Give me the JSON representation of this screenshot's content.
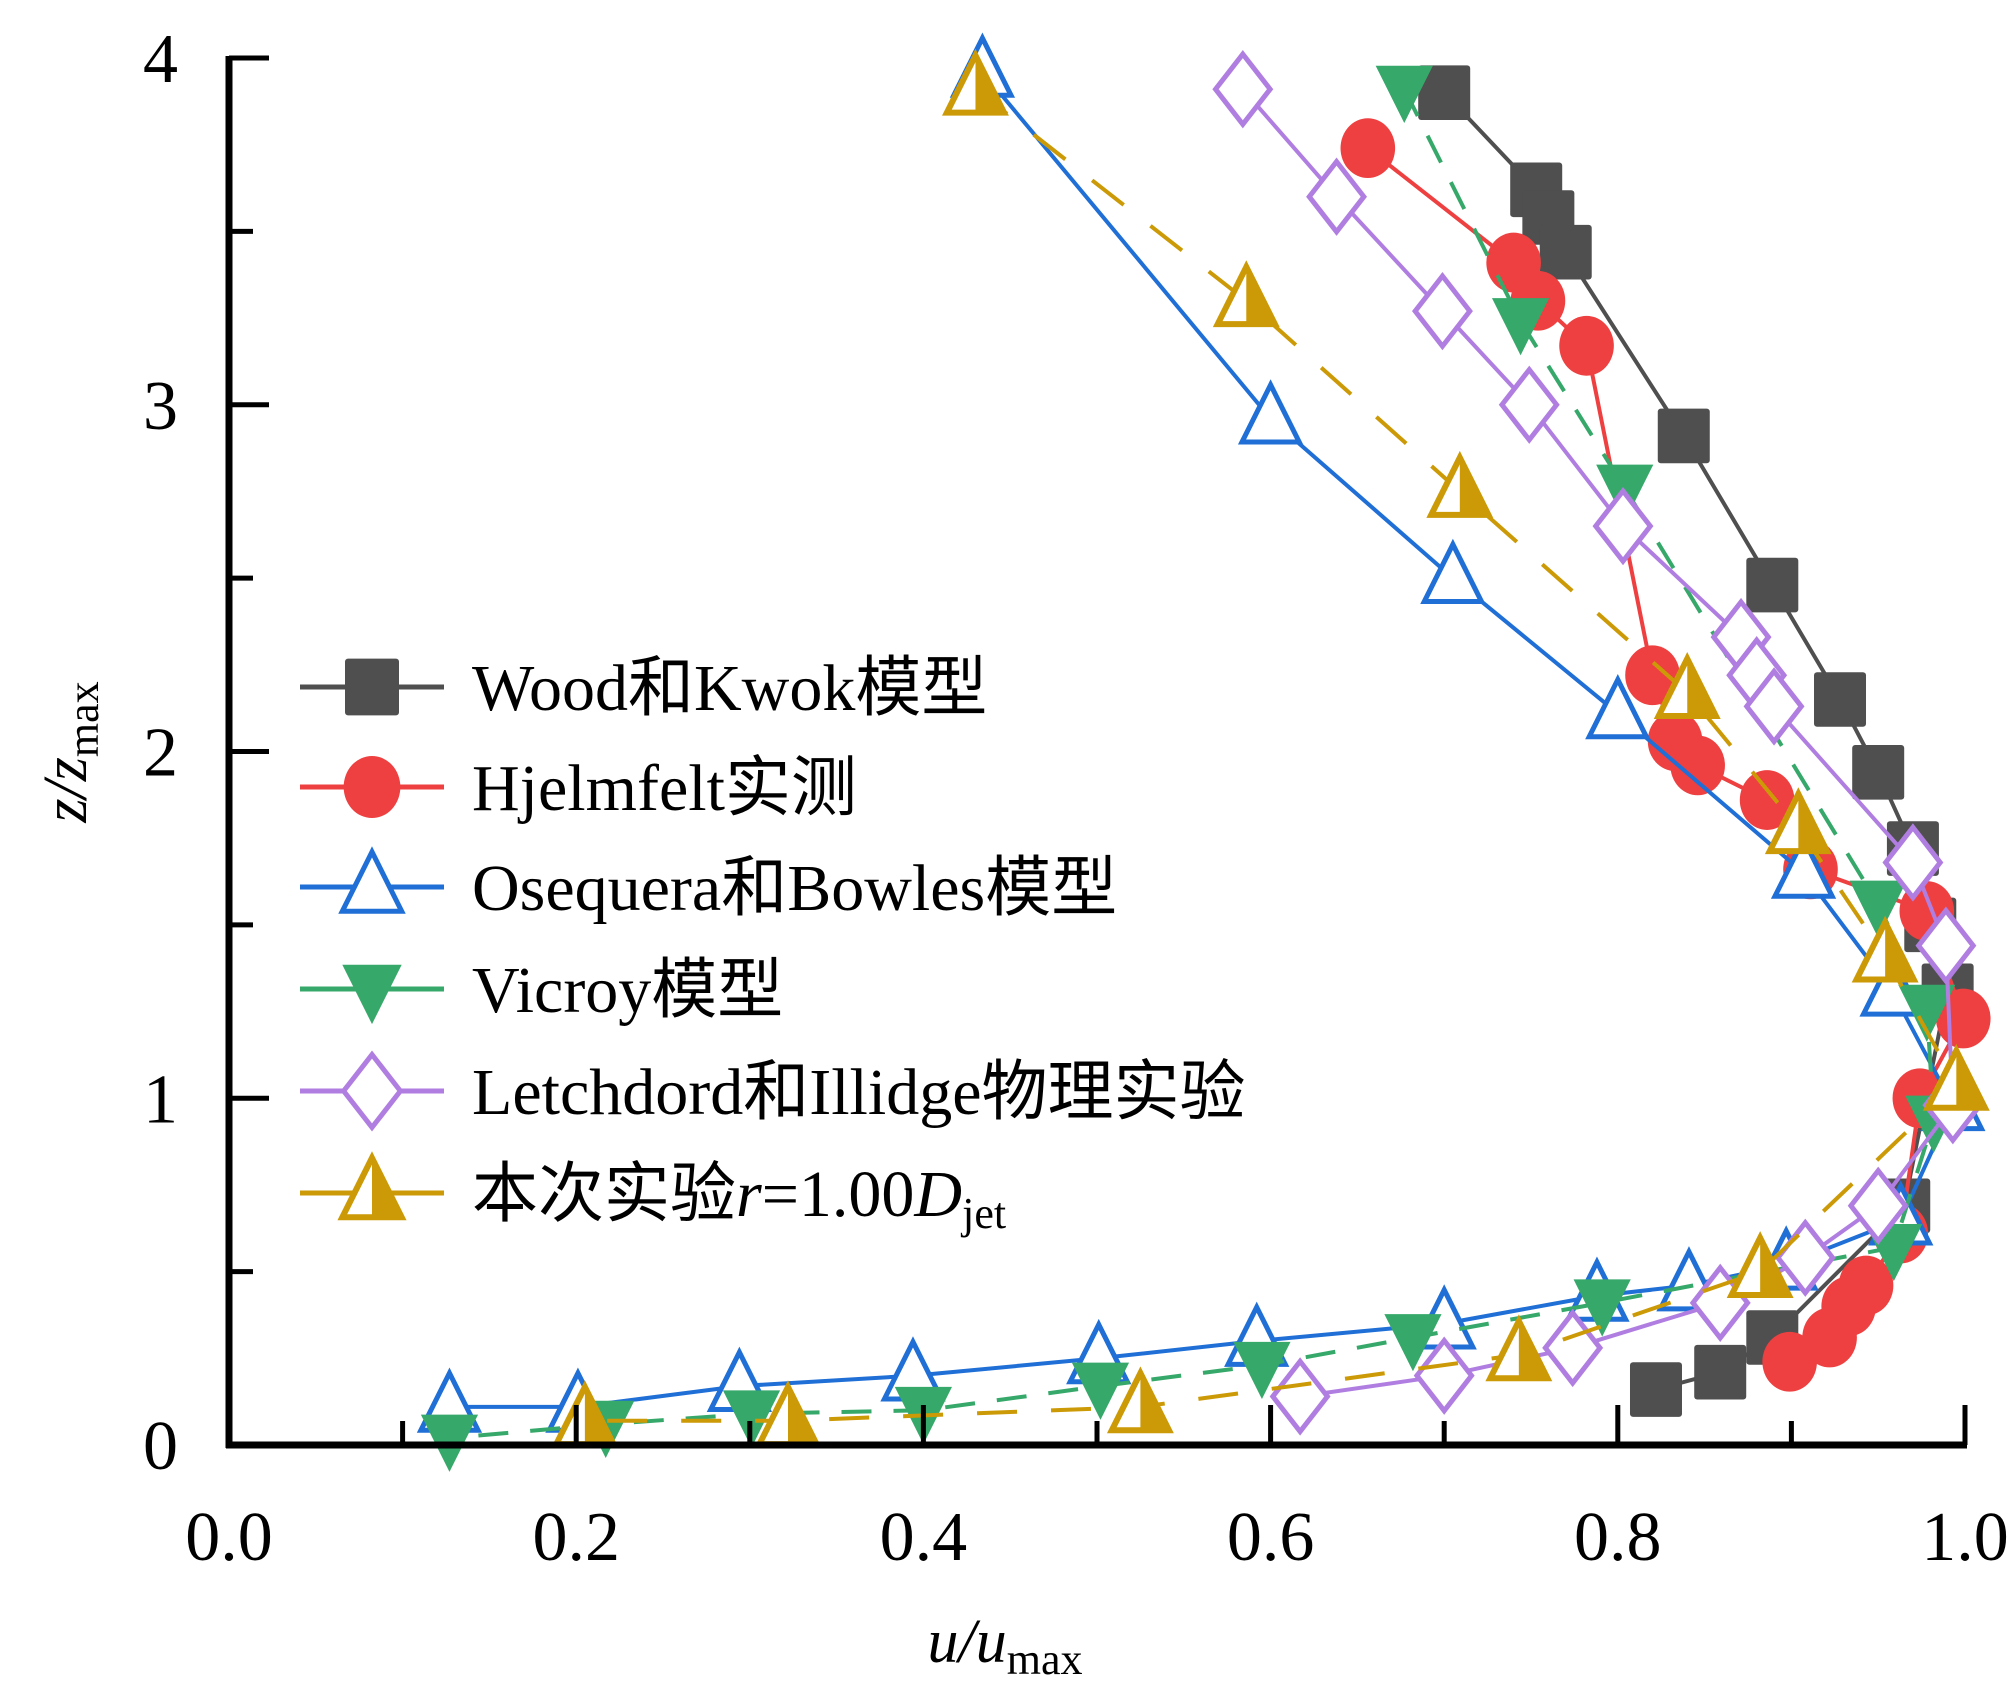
{
  "chart_data": {
    "type": "line",
    "title": "",
    "xlabel": {
      "main": "u/u",
      "sub": "max"
    },
    "ylabel": {
      "main": "z/z",
      "sub": "max"
    },
    "xlim": [
      0.0,
      1.0
    ],
    "ylim": [
      0,
      4
    ],
    "x_ticks": [
      "0.0",
      "0.2",
      "0.4",
      "0.6",
      "0.8",
      "1.0"
    ],
    "x_tick_values": [
      0.0,
      0.2,
      0.4,
      0.6,
      0.8,
      1.0
    ],
    "y_ticks": [
      "0",
      "1",
      "2",
      "3",
      "4"
    ],
    "y_tick_values": [
      0,
      1,
      2,
      3,
      4
    ],
    "grid": false,
    "legend_position": "center-left",
    "series": [
      {
        "name": "Wood和Kwok模型",
        "color": "#4f4f4f",
        "marker": "square-filled",
        "line": "solid",
        "x": [
          0.7,
          0.753,
          0.76,
          0.77,
          0.838,
          0.889,
          0.928,
          0.95,
          0.97,
          0.98,
          0.99,
          0.965,
          0.889,
          0.859,
          0.822
        ],
        "y": [
          3.9,
          3.62,
          3.54,
          3.44,
          2.91,
          2.48,
          2.15,
          1.94,
          1.72,
          1.5,
          1.31,
          0.69,
          0.31,
          0.21,
          0.16
        ]
      },
      {
        "name": "Hjelmfelt实测",
        "color": "#ee4040",
        "marker": "circle-filled",
        "line": "solid",
        "x": [
          0.656,
          0.74,
          0.754,
          0.782,
          0.82,
          0.833,
          0.846,
          0.886,
          0.911,
          0.978,
          0.999,
          0.974,
          0.963,
          0.943,
          0.933,
          0.922,
          0.899
        ],
        "y": [
          3.74,
          3.41,
          3.3,
          3.17,
          2.22,
          2.03,
          1.96,
          1.86,
          1.66,
          1.54,
          1.23,
          1.0,
          0.61,
          0.46,
          0.4,
          0.31,
          0.24
        ]
      },
      {
        "name": "Osequera和Bowles模型",
        "color": "#1f6fd6",
        "marker": "triangle-up-open",
        "line": "solid",
        "x": [
          0.434,
          0.6,
          0.705,
          0.8,
          0.907,
          0.958,
          0.993,
          0.963,
          0.897,
          0.841,
          0.788,
          0.7,
          0.592,
          0.501,
          0.394,
          0.294,
          0.201,
          0.127
        ],
        "y": [
          3.96,
          2.96,
          2.5,
          2.11,
          1.65,
          1.31,
          0.98,
          0.65,
          0.52,
          0.46,
          0.43,
          0.35,
          0.3,
          0.25,
          0.2,
          0.17,
          0.11,
          0.11
        ]
      },
      {
        "name": "Vicroy模型",
        "color": "#36a86a",
        "marker": "triangle-down-filled",
        "line": "dashed",
        "x": [
          0.677,
          0.744,
          0.804,
          0.95,
          0.978,
          0.982,
          0.959,
          0.791,
          0.682,
          0.595,
          0.502,
          0.4,
          0.301,
          0.217,
          0.127
        ],
        "y": [
          3.91,
          3.24,
          2.76,
          1.56,
          1.26,
          0.94,
          0.57,
          0.41,
          0.31,
          0.23,
          0.17,
          0.1,
          0.09,
          0.06,
          0.02
        ]
      },
      {
        "name": "Letchdord和Illidge物理实验",
        "color": "#b07ee0",
        "marker": "diamond-open",
        "line": "solid",
        "x": [
          0.584,
          0.638,
          0.699,
          0.749,
          0.803,
          0.871,
          0.88,
          0.89,
          0.97,
          0.989,
          0.993,
          0.95,
          0.908,
          0.859,
          0.774,
          0.7,
          0.617
        ],
        "y": [
          3.91,
          3.6,
          3.27,
          3.0,
          2.65,
          2.33,
          2.22,
          2.13,
          1.68,
          1.44,
          0.98,
          0.69,
          0.54,
          0.41,
          0.28,
          0.2,
          0.14
        ]
      },
      {
        "name": "本次实验r=1.00Djet",
        "legend_parts": {
          "prefix": "本次实验",
          "r": "r",
          "eq": "=1.00",
          "D": "D",
          "sub": "jet"
        },
        "color": "#cc9a06",
        "marker": "triangle-up-half",
        "line": "dashed-long",
        "x": [
          0.43,
          0.586,
          0.709,
          0.84,
          0.904,
          0.954,
          0.995,
          0.882,
          0.743,
          0.525,
          0.322,
          0.205
        ],
        "y": [
          3.91,
          3.3,
          2.75,
          2.17,
          1.78,
          1.41,
          1.04,
          0.5,
          0.26,
          0.11,
          0.07,
          0.07
        ]
      }
    ]
  }
}
